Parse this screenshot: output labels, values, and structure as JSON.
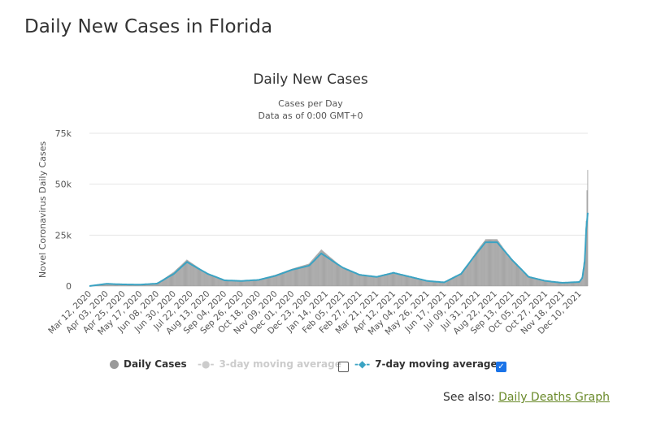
{
  "page_title": "Daily New Cases in Florida",
  "see_also": {
    "label": "See also:",
    "link": "Daily Deaths Graph"
  },
  "legend": {
    "daily": "Daily Cases",
    "avg3": "3-day moving average",
    "avg7": "7-day moving average",
    "avg3_checked": false,
    "avg7_checked": true
  },
  "colors": {
    "bars": "#999999",
    "avg7": "#3ba3c3",
    "avg3_disabled": "#cccccc",
    "grid": "#e6e6e6"
  },
  "chart_data": {
    "type": "bar",
    "title": "Daily New Cases",
    "subtitle": [
      "Cases per Day",
      "Data as of 0:00 GMT+0"
    ],
    "ylabel": "Novel Coronavirus Daily Cases",
    "ylim": [
      0,
      75000
    ],
    "yticks": [
      0,
      25000,
      50000,
      75000
    ],
    "ytick_labels": [
      "0",
      "25k",
      "50k",
      "75k"
    ],
    "xlim": [
      "2020-03-12",
      "2021-12-21"
    ],
    "xtick_labels": [
      "Mar 12, 2020",
      "Apr 03, 2020",
      "Apr 25, 2020",
      "May 17, 2020",
      "Jun 08, 2020",
      "Jun 30, 2020",
      "Jul 22, 2020",
      "Aug 13, 2020",
      "Sep 04, 2020",
      "Sep 26, 2020",
      "Oct 18, 2020",
      "Nov 09, 2020",
      "Dec 01, 2020",
      "Dec 23, 2020",
      "Jan 14, 2021",
      "Feb 05, 2021",
      "Feb 27, 2021",
      "Mar 21, 2021",
      "Apr 12, 2021",
      "May 04, 2021",
      "May 26, 2021",
      "Jun 17, 2021",
      "Jul 09, 2021",
      "Jul 31, 2021",
      "Aug 22, 2021",
      "Sep 13, 2021",
      "Oct 05, 2021",
      "Oct 27, 2021",
      "Nov 18, 2021",
      "Dec 10, 2021"
    ],
    "grid": true,
    "legend_placement": "bottom",
    "series": [
      {
        "name": "7-day moving average",
        "type": "line",
        "points": [
          [
            "2020-03-12",
            0
          ],
          [
            "2020-04-03",
            1100
          ],
          [
            "2020-04-25",
            800
          ],
          [
            "2020-05-17",
            700
          ],
          [
            "2020-06-08",
            1200
          ],
          [
            "2020-06-30",
            6000
          ],
          [
            "2020-07-17",
            11800
          ],
          [
            "2020-08-13",
            6000
          ],
          [
            "2020-09-04",
            2800
          ],
          [
            "2020-09-26",
            2500
          ],
          [
            "2020-10-18",
            3000
          ],
          [
            "2020-11-09",
            5000
          ],
          [
            "2020-12-01",
            8000
          ],
          [
            "2020-12-23",
            10000
          ],
          [
            "2021-01-08",
            16000
          ],
          [
            "2021-02-05",
            9000
          ],
          [
            "2021-02-27",
            5500
          ],
          [
            "2021-03-21",
            4500
          ],
          [
            "2021-04-12",
            6500
          ],
          [
            "2021-05-04",
            4500
          ],
          [
            "2021-05-26",
            2500
          ],
          [
            "2021-06-17",
            1800
          ],
          [
            "2021-07-09",
            6000
          ],
          [
            "2021-07-31",
            17000
          ],
          [
            "2021-08-10",
            21500
          ],
          [
            "2021-08-25",
            21500
          ],
          [
            "2021-09-13",
            13000
          ],
          [
            "2021-10-05",
            4500
          ],
          [
            "2021-10-27",
            2500
          ],
          [
            "2021-11-18",
            1600
          ],
          [
            "2021-12-10",
            2000
          ],
          [
            "2021-12-14",
            4000
          ],
          [
            "2021-12-17",
            12000
          ],
          [
            "2021-12-19",
            28000
          ],
          [
            "2021-12-21",
            36000
          ]
        ]
      },
      {
        "name": "Daily Cases",
        "type": "bar",
        "points": [
          [
            "2020-03-12",
            0
          ],
          [
            "2020-04-03",
            1200
          ],
          [
            "2020-04-25",
            800
          ],
          [
            "2020-05-17",
            700
          ],
          [
            "2020-06-08",
            1300
          ],
          [
            "2020-06-30",
            7000
          ],
          [
            "2020-07-17",
            13000
          ],
          [
            "2020-08-13",
            6000
          ],
          [
            "2020-09-04",
            2800
          ],
          [
            "2020-09-26",
            2500
          ],
          [
            "2020-10-18",
            3200
          ],
          [
            "2020-11-09",
            5500
          ],
          [
            "2020-12-01",
            8500
          ],
          [
            "2020-12-23",
            11000
          ],
          [
            "2021-01-08",
            18000
          ],
          [
            "2021-02-05",
            9000
          ],
          [
            "2021-02-27",
            5500
          ],
          [
            "2021-03-21",
            4500
          ],
          [
            "2021-04-12",
            6500
          ],
          [
            "2021-05-04",
            4500
          ],
          [
            "2021-05-26",
            2500
          ],
          [
            "2021-06-17",
            1800
          ],
          [
            "2021-07-09",
            6000
          ],
          [
            "2021-07-31",
            18000
          ],
          [
            "2021-08-10",
            23000
          ],
          [
            "2021-08-25",
            23000
          ],
          [
            "2021-09-13",
            13000
          ],
          [
            "2021-10-05",
            4500
          ],
          [
            "2021-10-27",
            2500
          ],
          [
            "2021-11-18",
            1600
          ],
          [
            "2021-12-10",
            2000
          ],
          [
            "2021-12-14",
            5000
          ],
          [
            "2021-12-17",
            15000
          ],
          [
            "2021-12-19",
            32000
          ],
          [
            "2021-12-20",
            47000
          ],
          [
            "2021-12-21",
            57000
          ]
        ]
      }
    ]
  }
}
